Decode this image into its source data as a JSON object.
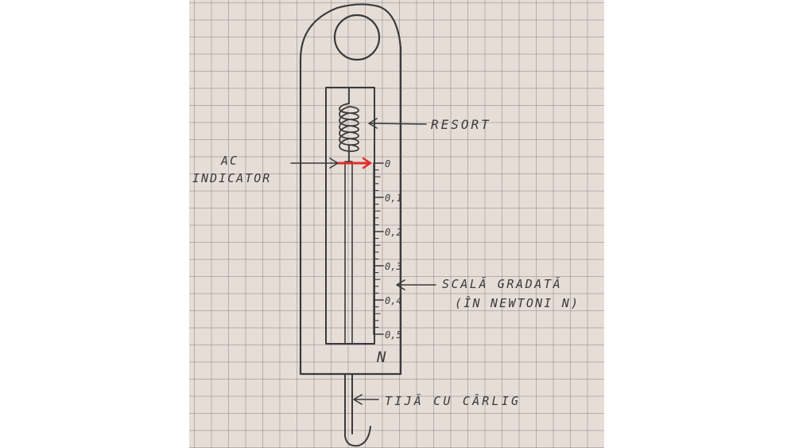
{
  "labels": {
    "resort": "RESORT",
    "ac_line1": "AC",
    "ac_line2": "INDICATOR",
    "scala_line1": "SCALĂ GRADATĂ",
    "scala_line2": "(ÎN NEWTONI N)",
    "tija": "TIJĂ CU CÂRLIG",
    "unit": "N"
  },
  "scale": {
    "min": 0,
    "max": 0.5,
    "major_labels": [
      "0",
      "0,1",
      "0,2",
      "0,3",
      "0,4",
      "0,5"
    ],
    "minor_divisions_per_major": 5
  },
  "colors": {
    "ink": "#3a3a3c",
    "pointer": "#e0302a",
    "paper": "#e6ddd6",
    "grid": "#787882"
  }
}
